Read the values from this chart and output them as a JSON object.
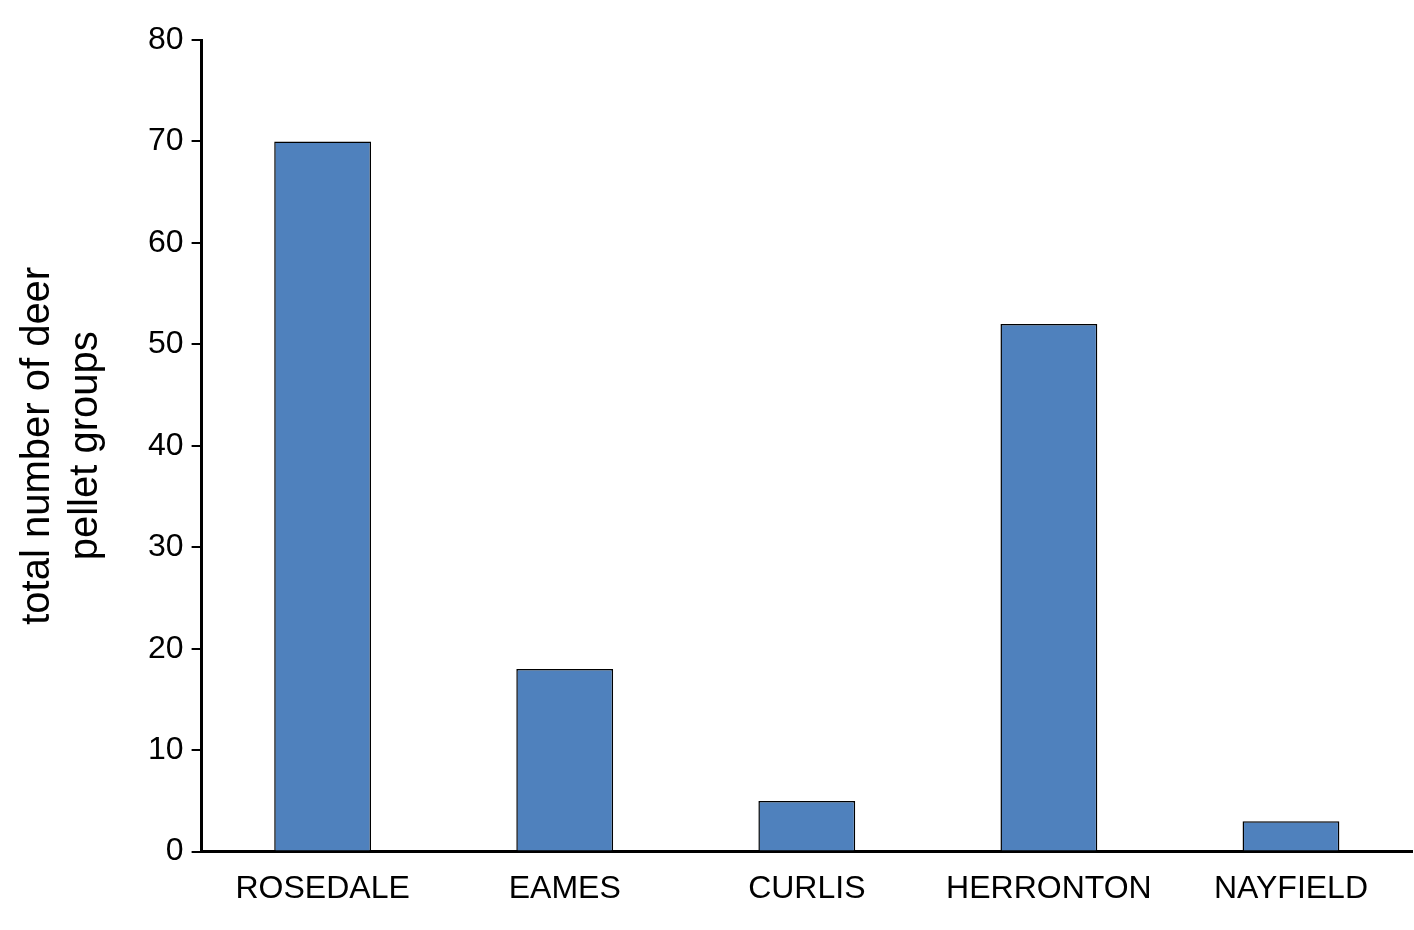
{
  "chart_data": {
    "type": "bar",
    "ylabel": "total number of deer pellet groups",
    "categories": [
      "ROSEDALE",
      "EAMES",
      "CURLIS",
      "HERRONTON",
      "NAYFIELD"
    ],
    "values": [
      70,
      18,
      5,
      52,
      3
    ],
    "color": "#4f81bd",
    "ylim": [
      0,
      80
    ],
    "yticks": [
      0,
      10,
      20,
      30,
      40,
      50,
      60,
      70,
      80
    ],
    "grid": false,
    "legend": false
  }
}
